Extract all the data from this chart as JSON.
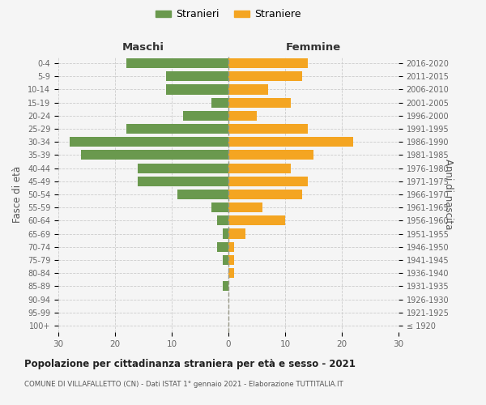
{
  "age_groups": [
    "100+",
    "95-99",
    "90-94",
    "85-89",
    "80-84",
    "75-79",
    "70-74",
    "65-69",
    "60-64",
    "55-59",
    "50-54",
    "45-49",
    "40-44",
    "35-39",
    "30-34",
    "25-29",
    "20-24",
    "15-19",
    "10-14",
    "5-9",
    "0-4"
  ],
  "birth_years": [
    "≤ 1920",
    "1921-1925",
    "1926-1930",
    "1931-1935",
    "1936-1940",
    "1941-1945",
    "1946-1950",
    "1951-1955",
    "1956-1960",
    "1961-1965",
    "1966-1970",
    "1971-1975",
    "1976-1980",
    "1981-1985",
    "1986-1990",
    "1991-1995",
    "1996-2000",
    "2001-2005",
    "2006-2010",
    "2011-2015",
    "2016-2020"
  ],
  "maschi": [
    0,
    0,
    0,
    1,
    0,
    1,
    2,
    1,
    2,
    3,
    9,
    16,
    16,
    26,
    28,
    18,
    8,
    3,
    11,
    11,
    18
  ],
  "femmine": [
    0,
    0,
    0,
    0,
    1,
    1,
    1,
    3,
    10,
    6,
    13,
    14,
    11,
    15,
    22,
    14,
    5,
    11,
    7,
    13,
    14
  ],
  "maschi_color": "#6a994e",
  "femmine_color": "#f4a522",
  "background_color": "#f5f5f5",
  "grid_color": "#cccccc",
  "title": "Popolazione per cittadinanza straniera per età e sesso - 2021",
  "subtitle": "COMUNE DI VILLAFALLETTO (CN) - Dati ISTAT 1° gennaio 2021 - Elaborazione TUTTITALIA.IT",
  "xlabel_left": "Maschi",
  "xlabel_right": "Femmine",
  "ylabel_left": "Fasce di età",
  "ylabel_right": "Anni di nascita",
  "legend_maschi": "Stranieri",
  "legend_femmine": "Straniere",
  "xlim": 30,
  "bar_height": 0.75
}
